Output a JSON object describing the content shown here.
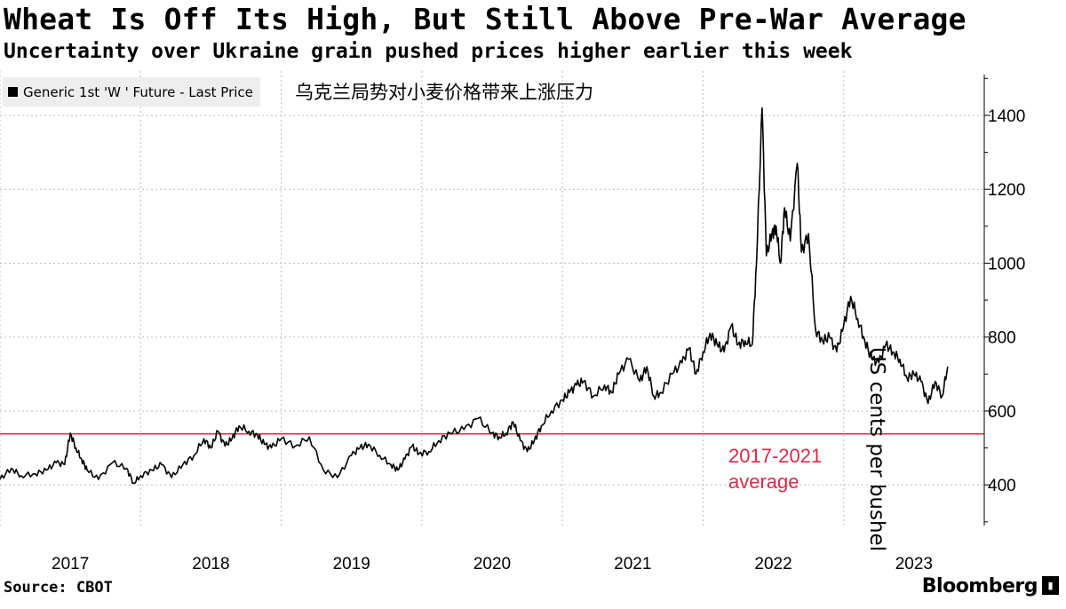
{
  "header": {
    "title": "Wheat Is Off Its High, But Still Above Pre-War Average",
    "subtitle": "Uncertainty over Ukraine grain pushed prices higher earlier this week"
  },
  "legend": {
    "series_label": "Generic 1st 'W ' Future - Last Price",
    "note": "乌克兰局势对小麦价格带来上涨压力"
  },
  "footer": {
    "source": "Source: CBOT",
    "brand": "Bloomberg"
  },
  "colors": {
    "line": "#000000",
    "average": "#e0284a",
    "grid": "#bdbdbd"
  },
  "chart_data": {
    "type": "line",
    "title": "Wheat Is Off Its High, But Still Above Pre-War Average",
    "xlabel": "",
    "ylabel": "US cents per bushel",
    "xlim": [
      2016.5,
      2023.5
    ],
    "ylim": [
      290,
      1520
    ],
    "x_ticks": [
      2017,
      2018,
      2019,
      2020,
      2021,
      2022,
      2023
    ],
    "y_ticks": [
      400,
      600,
      800,
      1000,
      1200,
      1400
    ],
    "grid": true,
    "reference_line": {
      "value": 538,
      "label_line1": "2017-2021",
      "label_line2": "average"
    },
    "series": [
      {
        "name": "Generic 1st 'W ' Future - Last Price",
        "x": [
          2016.5,
          2016.58,
          2016.65,
          2016.75,
          2016.83,
          2016.9,
          2016.96,
          2017.0,
          2017.04,
          2017.08,
          2017.12,
          2017.2,
          2017.3,
          2017.4,
          2017.45,
          2017.5,
          2017.58,
          2017.65,
          2017.72,
          2017.8,
          2017.88,
          2017.95,
          2018.0,
          2018.05,
          2018.1,
          2018.15,
          2018.2,
          2018.27,
          2018.33,
          2018.38,
          2018.43,
          2018.5,
          2018.6,
          2018.7,
          2018.8,
          2018.9,
          2019.0,
          2019.06,
          2019.12,
          2019.2,
          2019.28,
          2019.33,
          2019.38,
          2019.43,
          2019.48,
          2019.55,
          2019.62,
          2019.7,
          2019.8,
          2019.9,
          2020.0,
          2020.05,
          2020.1,
          2020.15,
          2020.2,
          2020.25,
          2020.3,
          2020.35,
          2020.42,
          2020.5,
          2020.55,
          2020.6,
          2020.65,
          2020.72,
          2020.8,
          2020.85,
          2020.9,
          2020.97,
          2021.05,
          2021.1,
          2021.15,
          2021.2,
          2021.28,
          2021.35,
          2021.4,
          2021.45,
          2021.5,
          2021.55,
          2021.6,
          2021.65,
          2021.7,
          2021.75,
          2021.8,
          2021.85,
          2021.88,
          2021.92,
          2021.95,
          2021.99,
          2022.02,
          2022.05,
          2022.08,
          2022.12,
          2022.17,
          2022.2,
          2022.25,
          2022.3,
          2022.35,
          2022.4,
          2022.45,
          2022.5,
          2022.55,
          2022.6,
          2022.65,
          2022.7,
          2022.75,
          2022.8,
          2022.85,
          2022.9,
          2022.95,
          2023.0,
          2023.05,
          2023.1,
          2023.15,
          2023.2,
          2023.24
        ],
        "values": [
          415,
          445,
          425,
          430,
          440,
          460,
          455,
          540,
          500,
          470,
          440,
          415,
          460,
          445,
          405,
          425,
          440,
          455,
          420,
          455,
          480,
          525,
          500,
          545,
          505,
          525,
          560,
          545,
          535,
          510,
          500,
          525,
          505,
          530,
          440,
          420,
          480,
          500,
          510,
          480,
          455,
          440,
          470,
          505,
          485,
          490,
          520,
          540,
          550,
          580,
          540,
          530,
          540,
          570,
          520,
          490,
          520,
          560,
          600,
          630,
          650,
          670,
          680,
          640,
          670,
          650,
          700,
          740,
          680,
          720,
          640,
          650,
          700,
          730,
          770,
          700,
          760,
          810,
          780,
          760,
          830,
          780,
          790,
          780,
          1000,
          1420,
          1020,
          1080,
          1100,
          1000,
          1150,
          1060,
          1270,
          1030,
          1080,
          820,
          790,
          800,
          760,
          830,
          910,
          850,
          790,
          740,
          730,
          780,
          760,
          740,
          690,
          700,
          680,
          620,
          680,
          640,
          720
        ]
      }
    ]
  }
}
